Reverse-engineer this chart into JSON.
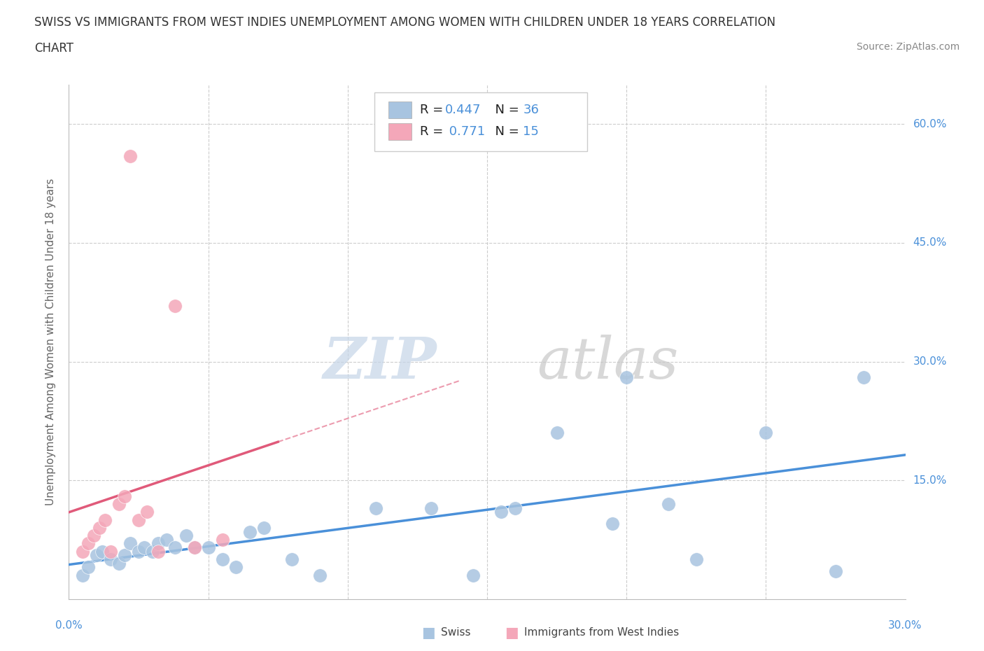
{
  "title_line1": "SWISS VS IMMIGRANTS FROM WEST INDIES UNEMPLOYMENT AMONG WOMEN WITH CHILDREN UNDER 18 YEARS CORRELATION",
  "title_line2": "CHART",
  "source": "Source: ZipAtlas.com",
  "ylabel": "Unemployment Among Women with Children Under 18 years",
  "xlim": [
    0.0,
    0.3
  ],
  "ylim": [
    0.0,
    0.65
  ],
  "xticks": [
    0.0,
    0.05,
    0.1,
    0.15,
    0.2,
    0.25,
    0.3
  ],
  "yticks": [
    0.0,
    0.15,
    0.3,
    0.45,
    0.6
  ],
  "swiss_color": "#a8c4e0",
  "west_indies_color": "#f4a7b9",
  "trend_swiss_color": "#4a90d9",
  "trend_wi_color": "#e05a7a",
  "swiss_R": "0.447",
  "swiss_N": "36",
  "wi_R": "0.771",
  "wi_N": "15",
  "swiss_x": [
    0.005,
    0.007,
    0.01,
    0.012,
    0.015,
    0.018,
    0.02,
    0.022,
    0.025,
    0.027,
    0.03,
    0.032,
    0.035,
    0.038,
    0.042,
    0.045,
    0.05,
    0.055,
    0.06,
    0.065,
    0.07,
    0.08,
    0.09,
    0.11,
    0.13,
    0.145,
    0.155,
    0.16,
    0.175,
    0.195,
    0.2,
    0.215,
    0.225,
    0.25,
    0.275,
    0.285
  ],
  "swiss_y": [
    0.03,
    0.04,
    0.055,
    0.06,
    0.05,
    0.045,
    0.055,
    0.07,
    0.06,
    0.065,
    0.06,
    0.07,
    0.075,
    0.065,
    0.08,
    0.065,
    0.065,
    0.05,
    0.04,
    0.085,
    0.09,
    0.05,
    0.03,
    0.115,
    0.115,
    0.03,
    0.11,
    0.115,
    0.21,
    0.095,
    0.28,
    0.12,
    0.05,
    0.21,
    0.035,
    0.28
  ],
  "wi_x": [
    0.005,
    0.007,
    0.009,
    0.011,
    0.013,
    0.015,
    0.018,
    0.02,
    0.022,
    0.025,
    0.028,
    0.032,
    0.038,
    0.045,
    0.055
  ],
  "wi_y": [
    0.06,
    0.07,
    0.08,
    0.09,
    0.1,
    0.06,
    0.12,
    0.13,
    0.56,
    0.1,
    0.11,
    0.06,
    0.37,
    0.065,
    0.075
  ]
}
